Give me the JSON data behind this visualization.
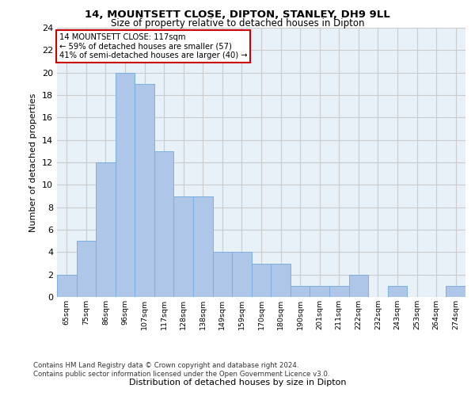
{
  "title1": "14, MOUNTSETT CLOSE, DIPTON, STANLEY, DH9 9LL",
  "title2": "Size of property relative to detached houses in Dipton",
  "xlabel": "Distribution of detached houses by size in Dipton",
  "ylabel": "Number of detached properties",
  "bar_labels": [
    "65sqm",
    "75sqm",
    "86sqm",
    "96sqm",
    "107sqm",
    "117sqm",
    "128sqm",
    "138sqm",
    "149sqm",
    "159sqm",
    "170sqm",
    "180sqm",
    "190sqm",
    "201sqm",
    "211sqm",
    "222sqm",
    "232sqm",
    "243sqm",
    "253sqm",
    "264sqm",
    "274sqm"
  ],
  "bar_values": [
    2,
    5,
    12,
    20,
    19,
    13,
    9,
    9,
    4,
    4,
    3,
    3,
    1,
    1,
    1,
    2,
    0,
    1,
    0,
    0,
    1
  ],
  "highlight_index": 5,
  "bar_color": "#aec6e8",
  "bar_edge_color": "#7aafe0",
  "annotation_box_text": "14 MOUNTSETT CLOSE: 117sqm\n← 59% of detached houses are smaller (57)\n41% of semi-detached houses are larger (40) →",
  "annotation_box_color": "#ffffff",
  "annotation_box_edge_color": "#cc0000",
  "ylim": [
    0,
    24
  ],
  "yticks": [
    0,
    2,
    4,
    6,
    8,
    10,
    12,
    14,
    16,
    18,
    20,
    22,
    24
  ],
  "footer": "Contains HM Land Registry data © Crown copyright and database right 2024.\nContains public sector information licensed under the Open Government Licence v3.0.",
  "grid_color": "#cccccc",
  "bg_color": "#e8f0f8"
}
